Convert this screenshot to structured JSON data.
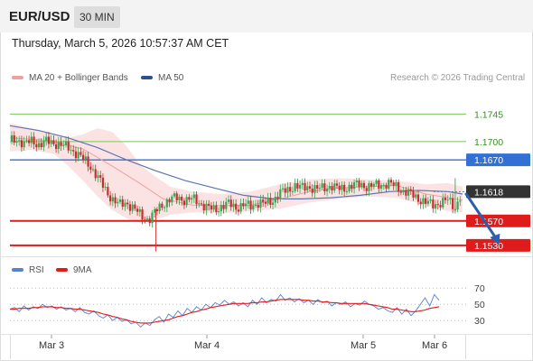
{
  "header": {
    "symbol": "EUR/USD",
    "timeframe": "30 MIN",
    "datetime": "Thursday, March 5, 2026 10:57:37 AM CET"
  },
  "legend": {
    "ma20_label": "MA 20 + Bollinger Bands",
    "ma50_label": "MA 50",
    "credit": "Research © 2026 Trading Central",
    "rsi_label": "RSI",
    "rsi_ma_label": "9MA"
  },
  "colors": {
    "up_candle": "#3aa655",
    "down_candle": "#cc2b2b",
    "ma20": "#f0a0a0",
    "bollinger_fill": "#fbd9d9",
    "ma50": "#5b76b3",
    "resistance_green": "#7cc45a",
    "pivot_blue": "#3370d6",
    "support_red": "#e01b1b",
    "current_price": "#333333",
    "rsi": "#5a7fd6",
    "rsi_ma": "#e01b1b",
    "arrow": "#2d5ea8"
  },
  "chart_data": [
    {
      "type": "candlestick",
      "title": "EUR/USD 30 MIN",
      "ylim": [
        1.1512,
        1.179
      ],
      "x_ticks": [
        "Mar 3",
        "Mar 4",
        "Mar 5",
        "Mar 6"
      ],
      "levels": [
        {
          "value": 1.1745,
          "label": "1.1745",
          "kind": "resistance"
        },
        {
          "value": 1.17,
          "label": "1.1700",
          "kind": "resistance"
        },
        {
          "value": 1.167,
          "label": "1.1670",
          "kind": "pivot"
        },
        {
          "value": 1.1618,
          "label": "1.1618",
          "kind": "current"
        },
        {
          "value": 1.157,
          "label": "1.1570",
          "kind": "support"
        },
        {
          "value": 1.153,
          "label": "1.1530",
          "kind": "support"
        }
      ],
      "close_path": [
        [
          0,
          1.17
        ],
        [
          4,
          1.1704
        ],
        [
          8,
          1.1696
        ],
        [
          12,
          1.1701
        ],
        [
          16,
          1.1695
        ],
        [
          20,
          1.17
        ],
        [
          24,
          1.1698
        ],
        [
          28,
          1.1694
        ],
        [
          32,
          1.169
        ],
        [
          36,
          1.1682
        ],
        [
          40,
          1.1672
        ],
        [
          44,
          1.166
        ],
        [
          48,
          1.1642
        ],
        [
          52,
          1.1622
        ],
        [
          56,
          1.1606
        ],
        [
          60,
          1.1596
        ],
        [
          64,
          1.16
        ],
        [
          68,
          1.159
        ],
        [
          72,
          1.1578
        ],
        [
          76,
          1.1572
        ],
        [
          80,
          1.1586
        ],
        [
          84,
          1.1598
        ],
        [
          88,
          1.1606
        ],
        [
          92,
          1.1608
        ],
        [
          96,
          1.1604
        ],
        [
          100,
          1.1606
        ],
        [
          104,
          1.16
        ],
        [
          108,
          1.1592
        ],
        [
          112,
          1.1588
        ],
        [
          116,
          1.1594
        ],
        [
          120,
          1.1598
        ],
        [
          124,
          1.1592
        ],
        [
          128,
          1.1596
        ],
        [
          132,
          1.1594
        ],
        [
          136,
          1.16
        ],
        [
          140,
          1.1598
        ],
        [
          144,
          1.1604
        ],
        [
          148,
          1.1616
        ],
        [
          152,
          1.162
        ],
        [
          156,
          1.1628
        ],
        [
          160,
          1.1624
        ],
        [
          164,
          1.1626
        ],
        [
          168,
          1.1622
        ],
        [
          172,
          1.1624
        ],
        [
          176,
          1.1628
        ],
        [
          180,
          1.1622
        ],
        [
          184,
          1.1624
        ],
        [
          188,
          1.1628
        ],
        [
          192,
          1.163
        ],
        [
          196,
          1.1626
        ],
        [
          200,
          1.1628
        ],
        [
          204,
          1.163
        ],
        [
          208,
          1.1631
        ],
        [
          212,
          1.1626
        ],
        [
          216,
          1.1618
        ],
        [
          220,
          1.1614
        ],
        [
          224,
          1.1606
        ],
        [
          228,
          1.16
        ],
        [
          232,
          1.1596
        ],
        [
          236,
          1.16
        ],
        [
          240,
          1.1604
        ],
        [
          244,
          1.1592
        ],
        [
          248,
          1.1618
        ]
      ],
      "ma20": [
        [
          0,
          1.1706
        ],
        [
          20,
          1.1702
        ],
        [
          40,
          1.1688
        ],
        [
          56,
          1.166
        ],
        [
          72,
          1.163
        ],
        [
          84,
          1.1606
        ],
        [
          100,
          1.1596
        ],
        [
          116,
          1.1595
        ],
        [
          132,
          1.1596
        ],
        [
          148,
          1.1606
        ],
        [
          164,
          1.1618
        ],
        [
          180,
          1.1624
        ],
        [
          196,
          1.1626
        ],
        [
          212,
          1.1628
        ],
        [
          228,
          1.1614
        ],
        [
          248,
          1.1604
        ]
      ],
      "bollinger_upper": [
        [
          0,
          1.173
        ],
        [
          12,
          1.1722
        ],
        [
          24,
          1.1712
        ],
        [
          32,
          1.1706
        ],
        [
          40,
          1.1712
        ],
        [
          48,
          1.1722
        ],
        [
          56,
          1.1716
        ],
        [
          64,
          1.1692
        ],
        [
          72,
          1.166
        ],
        [
          80,
          1.1642
        ],
        [
          88,
          1.1626
        ],
        [
          100,
          1.1618
        ],
        [
          116,
          1.1614
        ],
        [
          132,
          1.1618
        ],
        [
          148,
          1.163
        ],
        [
          164,
          1.1638
        ],
        [
          180,
          1.164
        ],
        [
          196,
          1.1638
        ],
        [
          212,
          1.1636
        ],
        [
          228,
          1.163
        ],
        [
          240,
          1.1632
        ],
        [
          248,
          1.1626
        ]
      ],
      "bollinger_lower": [
        [
          0,
          1.1684
        ],
        [
          12,
          1.1686
        ],
        [
          24,
          1.168
        ],
        [
          32,
          1.166
        ],
        [
          40,
          1.1636
        ],
        [
          48,
          1.161
        ],
        [
          56,
          1.1588
        ],
        [
          64,
          1.1574
        ],
        [
          72,
          1.1566
        ],
        [
          80,
          1.1572
        ],
        [
          88,
          1.158
        ],
        [
          100,
          1.1584
        ],
        [
          116,
          1.1582
        ],
        [
          132,
          1.1586
        ],
        [
          148,
          1.159
        ],
        [
          164,
          1.16
        ],
        [
          180,
          1.1606
        ],
        [
          196,
          1.161
        ],
        [
          212,
          1.1608
        ],
        [
          228,
          1.1596
        ],
        [
          240,
          1.1586
        ],
        [
          248,
          1.1584
        ]
      ],
      "ma50": [
        [
          0,
          1.1726
        ],
        [
          16,
          1.1718
        ],
        [
          32,
          1.1706
        ],
        [
          48,
          1.169
        ],
        [
          64,
          1.167
        ],
        [
          80,
          1.1652
        ],
        [
          96,
          1.1636
        ],
        [
          112,
          1.1624
        ],
        [
          128,
          1.1612
        ],
        [
          144,
          1.1606
        ],
        [
          160,
          1.1606
        ],
        [
          176,
          1.1608
        ],
        [
          192,
          1.1612
        ],
        [
          208,
          1.1618
        ],
        [
          224,
          1.162
        ],
        [
          240,
          1.1618
        ],
        [
          248,
          1.1614
        ]
      ],
      "forecast_arrow": {
        "from": [
          250,
          1.1614
        ],
        "to": [
          268,
          1.153
        ]
      }
    },
    {
      "type": "line",
      "title": "RSI",
      "ylim": [
        18,
        78
      ],
      "y_ticks": [
        70,
        50,
        30
      ],
      "series": [
        {
          "name": "RSI",
          "values": [
            44,
            46,
            41,
            48,
            43,
            47,
            45,
            50,
            46,
            48,
            44,
            47,
            43,
            45,
            41,
            46,
            40,
            38,
            42,
            36,
            33,
            37,
            30,
            34,
            29,
            31,
            26,
            28,
            22,
            27,
            24,
            31,
            35,
            28,
            38,
            34,
            42,
            36,
            45,
            40,
            47,
            43,
            50,
            46,
            52,
            49,
            55,
            50,
            53,
            48,
            52,
            47,
            55,
            50,
            58,
            52,
            56,
            54,
            62,
            55,
            58,
            53,
            57,
            52,
            55,
            50,
            56,
            52,
            54,
            48,
            52,
            50,
            53,
            47,
            51,
            49,
            54,
            50,
            48,
            44,
            46,
            42,
            40,
            46,
            38,
            44,
            36,
            42,
            50,
            58,
            48,
            62,
            55
          ]
        },
        {
          "name": "9MA",
          "values": [
            44,
            44,
            45,
            45,
            45,
            46,
            46,
            47,
            47,
            47,
            46,
            46,
            45,
            45,
            44,
            44,
            43,
            42,
            41,
            40,
            38,
            37,
            35,
            34,
            32,
            31,
            29,
            28,
            27,
            27,
            27,
            28,
            29,
            30,
            31,
            33,
            35,
            36,
            38,
            40,
            41,
            43,
            44,
            46,
            47,
            48,
            49,
            50,
            51,
            51,
            51,
            51,
            52,
            52,
            53,
            53,
            54,
            55,
            56,
            56,
            56,
            56,
            56,
            55,
            55,
            54,
            54,
            53,
            53,
            52,
            52,
            51,
            51,
            51,
            51,
            51,
            51,
            50,
            49,
            48,
            47,
            46,
            44,
            44,
            43,
            42,
            41,
            41,
            42,
            43,
            45,
            46,
            47
          ]
        }
      ]
    }
  ]
}
